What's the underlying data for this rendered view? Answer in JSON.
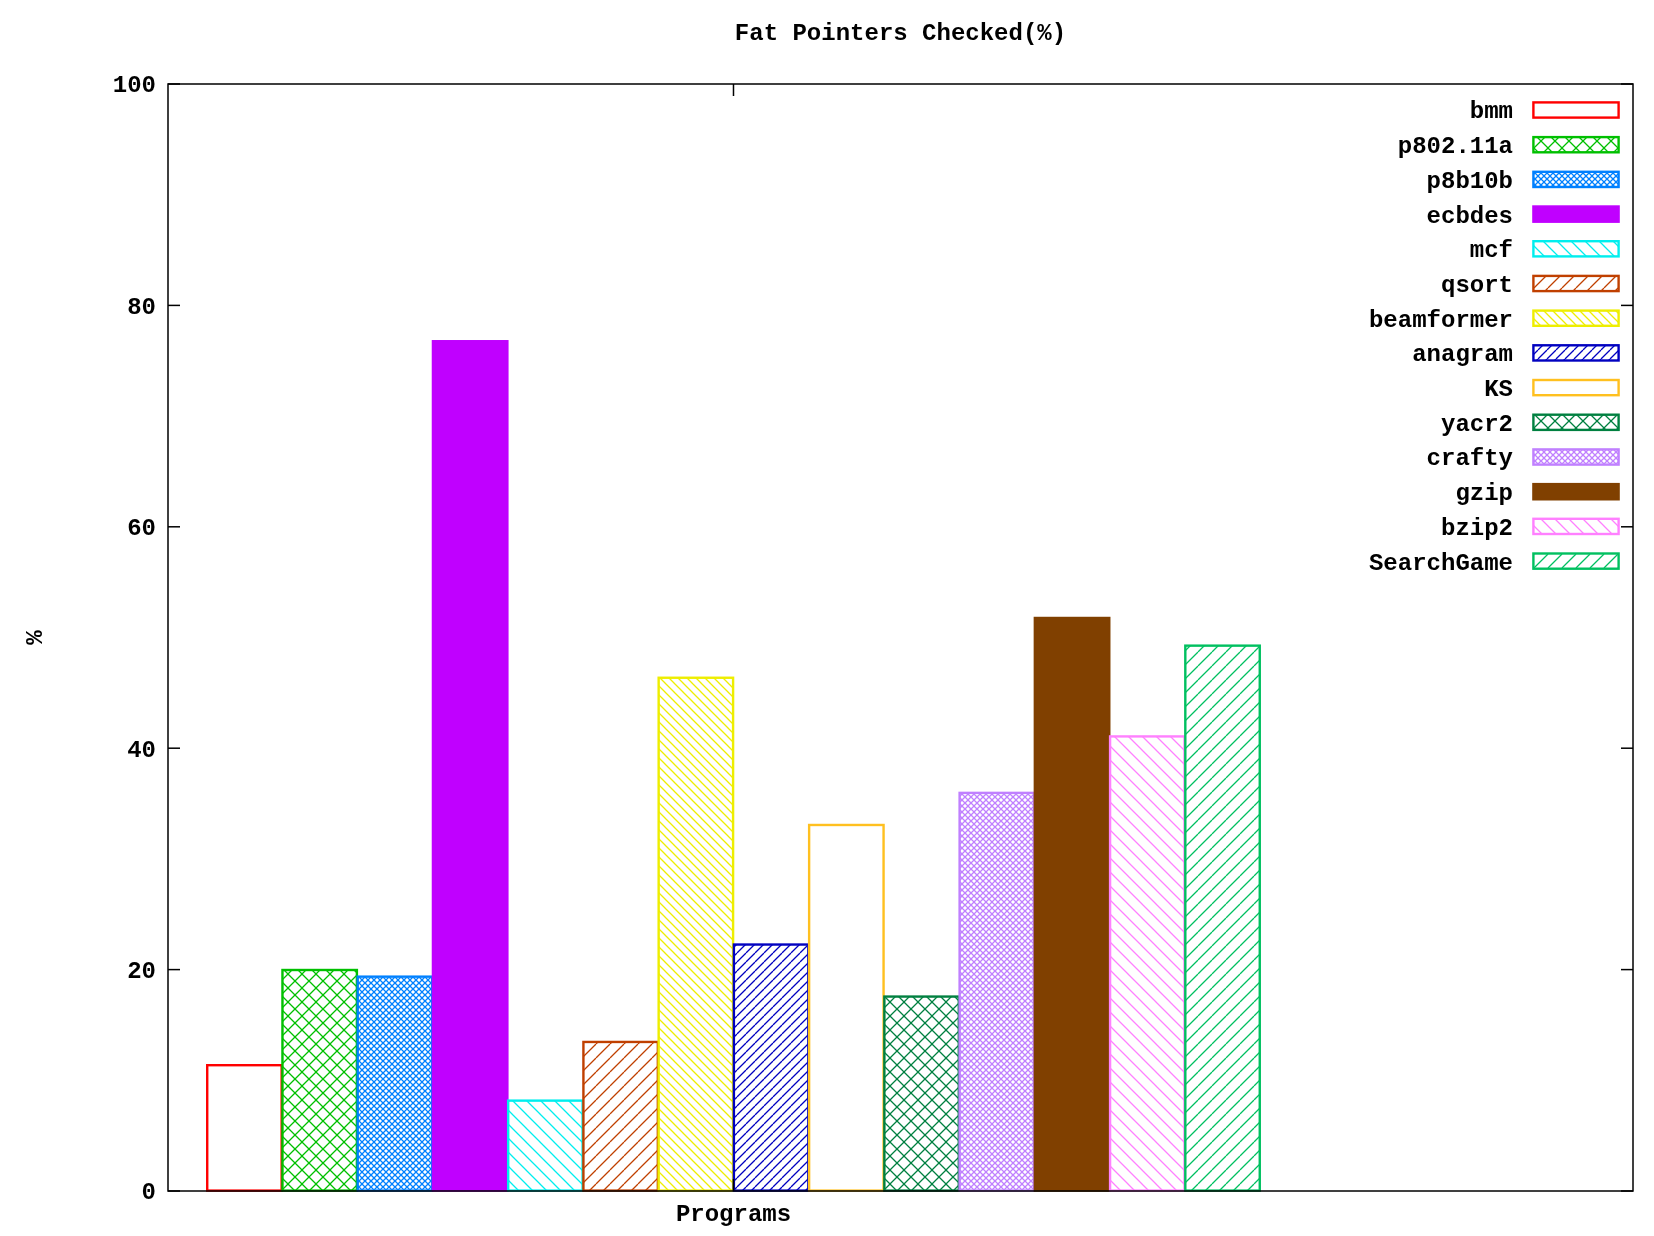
{
  "chart_data": {
    "type": "bar",
    "title": "Fat Pointers Checked(%)",
    "xlabel": "Programs",
    "ylabel": "%",
    "categories": [
      null
    ],
    "ylim": [
      0,
      100
    ],
    "yticks": [
      0,
      20,
      40,
      60,
      80,
      100
    ],
    "grid": false,
    "legend": "top right",
    "series": [
      {
        "name": "bmm",
        "color": "#ff0000",
        "values": [
          11.4
        ]
      },
      {
        "name": "p802.11a",
        "color": "#00c000",
        "values": [
          20.0
        ]
      },
      {
        "name": "p8b10b",
        "color": "#0080ff",
        "values": [
          19.4
        ]
      },
      {
        "name": "ecbdes",
        "color": "#c000ff",
        "values": [
          76.8
        ]
      },
      {
        "name": "mcf",
        "color": "#00eeee",
        "values": [
          8.2
        ]
      },
      {
        "name": "qsort",
        "color": "#c04000",
        "values": [
          13.5
        ]
      },
      {
        "name": "beamformer",
        "color": "#eeee00",
        "values": [
          46.4
        ]
      },
      {
        "name": "anagram",
        "color": "#0000c0",
        "values": [
          22.3
        ]
      },
      {
        "name": "KS",
        "color": "#ffc020",
        "values": [
          33.1
        ]
      },
      {
        "name": "yacr2",
        "color": "#008040",
        "values": [
          17.6
        ]
      },
      {
        "name": "crafty",
        "color": "#c080ff",
        "values": [
          36.0
        ]
      },
      {
        "name": "gzip",
        "color": "#804000",
        "values": [
          51.8
        ]
      },
      {
        "name": "bzip2",
        "color": "#ff80ff",
        "values": [
          41.1
        ]
      },
      {
        "name": "SearchGame",
        "color": "#00c060",
        "values": [
          49.3
        ]
      }
    ]
  }
}
